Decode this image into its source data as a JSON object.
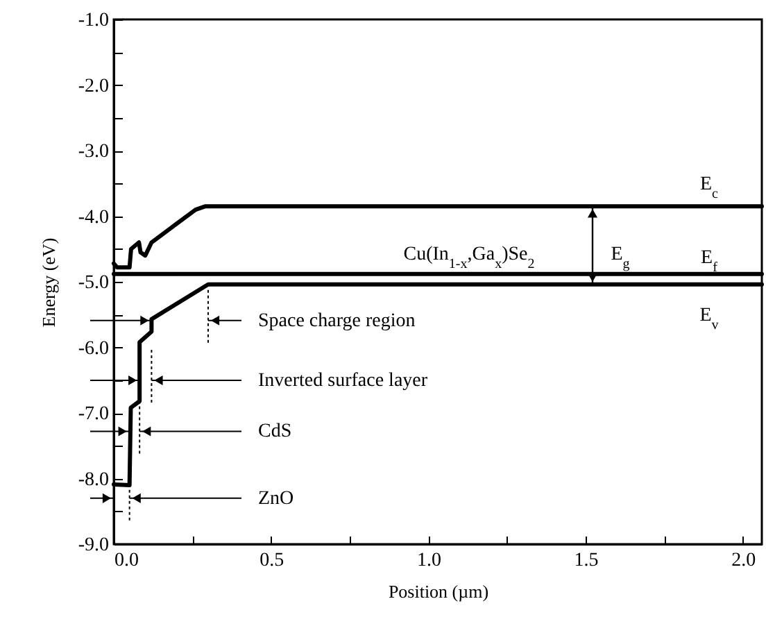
{
  "chart_data": {
    "type": "line",
    "xlabel": "Position (µm)",
    "ylabel": "Energy (eV)",
    "series": [
      {
        "name": "E$_{c}$",
        "color": "#000000",
        "x": [
          0,
          0.01,
          0.05,
          0.055,
          0.08,
          0.085,
          0.1,
          0.12,
          0.26,
          0.29,
          2.06
        ],
        "values": [
          -4.72,
          -4.78,
          -4.78,
          -4.5,
          -4.4,
          -4.55,
          -4.6,
          -4.4,
          -3.9,
          -3.85,
          -3.85
        ]
      },
      {
        "name": "E$_{f}$",
        "color": "#000000",
        "x": [
          0,
          2.06
        ],
        "values": [
          -4.88,
          -4.88
        ]
      },
      {
        "name": "E$_{v}$",
        "color": "#000000",
        "x": [
          0,
          0.05,
          0.054,
          0.082,
          0.082,
          0.12,
          0.12,
          0.3,
          2.06
        ],
        "values": [
          -8.09,
          -8.1,
          -6.92,
          -6.82,
          -5.92,
          -5.76,
          -5.57,
          -5.04,
          -5.04
        ]
      }
    ],
    "xlim": [
      0,
      2.06
    ],
    "ylim": [
      -9,
      -1
    ],
    "xticks": [
      {
        "value": 0,
        "label": "0.0"
      },
      {
        "value": 0.25,
        "label": null
      },
      {
        "value": 0.5,
        "label": "0.5"
      },
      {
        "value": 0.75,
        "label": null
      },
      {
        "value": 1,
        "label": "1.0"
      },
      {
        "value": 1.25,
        "label": null
      },
      {
        "value": 1.5,
        "label": "1.5"
      },
      {
        "value": 1.75,
        "label": null
      },
      {
        "value": 2,
        "label": "2.0"
      }
    ],
    "yticks": [
      {
        "value": -9,
        "label": "-9.0"
      },
      {
        "value": -8.5,
        "label": null
      },
      {
        "value": -8,
        "label": "-8.0"
      },
      {
        "value": -7.5,
        "label": null
      },
      {
        "value": -7,
        "label": "-7.0"
      },
      {
        "value": -6.5,
        "label": null
      },
      {
        "value": -6,
        "label": "-6.0"
      },
      {
        "value": -5.5,
        "label": null
      },
      {
        "value": -5,
        "label": "-5.0"
      },
      {
        "value": -4.5,
        "label": null
      },
      {
        "value": -4,
        "label": "-4.0"
      },
      {
        "value": -3.5,
        "label": null
      },
      {
        "value": -3,
        "label": "-3.0"
      },
      {
        "value": -2.5,
        "label": null
      },
      {
        "value": -2,
        "label": "-2.0"
      },
      {
        "value": -1.5,
        "label": null
      },
      {
        "value": -1,
        "label": "-1.0"
      }
    ],
    "marker": "none",
    "line_style": "solid",
    "ref_lines": [
      {
        "axis": "x",
        "value": 0.3,
        "line_style": "dotted"
      },
      {
        "axis": "x",
        "value": 0.12,
        "line_style": "dotted"
      },
      {
        "axis": "x",
        "value": 0.082,
        "line_style": "dotted"
      },
      {
        "axis": "x",
        "value": 0.05,
        "line_style": "dotted"
      }
    ],
    "annotations": [
      "Cu(In$_{1-x}$,Ga$_{x}$)Se$_{2}$",
      "E$_{g}$",
      {
        "text": "Space charge region",
        "x": 0.3,
        "y": -5.59
      },
      "Inverted surface layer",
      {
        "text": "CdS",
        "x": 0.082,
        "y": -7.28
      },
      {
        "text": "ZnO",
        "x": 0.05,
        "y": -8.3
      }
    ]
  }
}
